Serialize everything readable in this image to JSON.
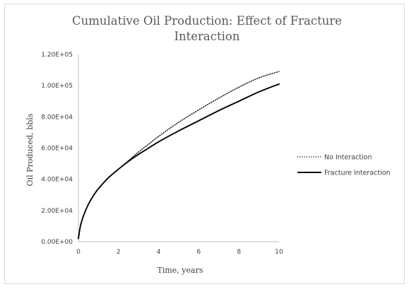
{
  "chart_data": {
    "type": "line",
    "title_line1": "Cumulative Oil Production: Effect of Fracture",
    "title_line2": "Interaction",
    "xlabel": "Time, years",
    "ylabel": "Oil Produced, bbls",
    "xlim": [
      0,
      10
    ],
    "ylim": [
      0,
      120000
    ],
    "x_ticks": [
      0,
      2,
      4,
      6,
      8,
      10
    ],
    "x_tick_labels": [
      "0",
      "2",
      "4",
      "6",
      "8",
      "10"
    ],
    "y_ticks": [
      0,
      20000,
      40000,
      60000,
      80000,
      100000,
      120000
    ],
    "y_tick_labels": [
      "0.00E+00",
      "2.00E+04",
      "4.00E+04",
      "6.00E+04",
      "8.00E+04",
      "1.00E+05",
      "1.20E+05"
    ],
    "grid": false,
    "legend_position": "right",
    "series": [
      {
        "name": "No Interaction",
        "style": "dotted",
        "color": "#000000",
        "x": [
          0,
          0.1,
          0.25,
          0.5,
          0.75,
          1,
          1.5,
          2,
          2.5,
          3,
          3.5,
          4,
          5,
          6,
          7,
          8,
          9,
          10
        ],
        "y": [
          2000,
          10000,
          16500,
          24000,
          29500,
          34000,
          41000,
          46500,
          52000,
          57500,
          62500,
          67500,
          76500,
          84500,
          92000,
          99000,
          105000,
          109000
        ]
      },
      {
        "name": "Fracture Interaction",
        "style": "solid",
        "color": "#000000",
        "x": [
          0,
          0.1,
          0.25,
          0.5,
          0.75,
          1,
          1.5,
          2,
          2.5,
          3,
          3.5,
          4,
          5,
          6,
          7,
          8,
          9,
          10
        ],
        "y": [
          2000,
          10000,
          16500,
          24000,
          29500,
          34000,
          41000,
          46500,
          51500,
          56000,
          60000,
          64000,
          71000,
          77500,
          84000,
          90000,
          96000,
          101000
        ]
      }
    ]
  }
}
